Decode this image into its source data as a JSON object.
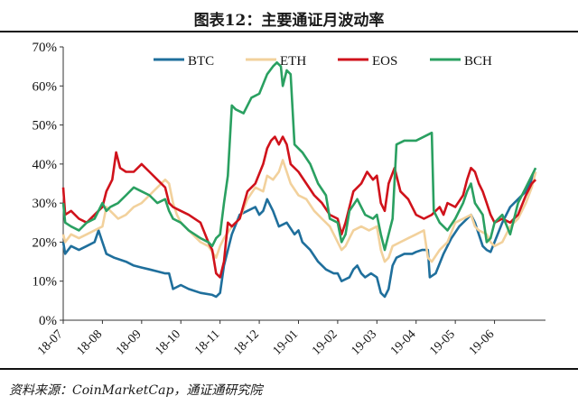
{
  "title": "图表12：主要通证月波动率",
  "source": "资料来源：CoinMarketCap，通证通研究院",
  "chart_data": {
    "type": "line",
    "x_ticks": [
      "18-07",
      "18-08",
      "18-09",
      "18-10",
      "18-11",
      "18-12",
      "19-01",
      "19-02",
      "19-03",
      "19-04",
      "19-05",
      "19-06"
    ],
    "y_ticks": [
      "0%",
      "10%",
      "20%",
      "30%",
      "40%",
      "50%",
      "60%",
      "70%"
    ],
    "ylim": [
      0,
      70
    ],
    "xlim": [
      0,
      12.3
    ],
    "legend_position": "top",
    "series": [
      {
        "name": "BTC",
        "color": "#1f6f9c",
        "points": [
          [
            0.0,
            20
          ],
          [
            0.05,
            17
          ],
          [
            0.2,
            19
          ],
          [
            0.4,
            18
          ],
          [
            0.6,
            19
          ],
          [
            0.8,
            20
          ],
          [
            0.9,
            23
          ],
          [
            1.0,
            20
          ],
          [
            1.1,
            17
          ],
          [
            1.3,
            16
          ],
          [
            1.6,
            15
          ],
          [
            1.8,
            14
          ],
          [
            2.0,
            13.5
          ],
          [
            2.2,
            13
          ],
          [
            2.4,
            12.5
          ],
          [
            2.6,
            12
          ],
          [
            2.7,
            12
          ],
          [
            2.8,
            8
          ],
          [
            3.0,
            9
          ],
          [
            3.2,
            8
          ],
          [
            3.5,
            7
          ],
          [
            3.8,
            6.5
          ],
          [
            3.9,
            6
          ],
          [
            4.0,
            7
          ],
          [
            4.1,
            14
          ],
          [
            4.3,
            22
          ],
          [
            4.5,
            27
          ],
          [
            4.7,
            28
          ],
          [
            4.9,
            29
          ],
          [
            5.0,
            27
          ],
          [
            5.1,
            28
          ],
          [
            5.2,
            31
          ],
          [
            5.35,
            28
          ],
          [
            5.5,
            24
          ],
          [
            5.7,
            25
          ],
          [
            5.9,
            22
          ],
          [
            6.0,
            23
          ],
          [
            6.1,
            20
          ],
          [
            6.3,
            18
          ],
          [
            6.5,
            15
          ],
          [
            6.7,
            13
          ],
          [
            6.9,
            12
          ],
          [
            7.0,
            12
          ],
          [
            7.1,
            10
          ],
          [
            7.3,
            11
          ],
          [
            7.4,
            13
          ],
          [
            7.5,
            14
          ],
          [
            7.6,
            12
          ],
          [
            7.7,
            11
          ],
          [
            7.85,
            12
          ],
          [
            8.0,
            11
          ],
          [
            8.1,
            7
          ],
          [
            8.2,
            6
          ],
          [
            8.3,
            8
          ],
          [
            8.4,
            14
          ],
          [
            8.5,
            16
          ],
          [
            8.7,
            17
          ],
          [
            8.9,
            17
          ],
          [
            9.0,
            17.5
          ],
          [
            9.15,
            18
          ],
          [
            9.3,
            18
          ],
          [
            9.35,
            11
          ],
          [
            9.5,
            12
          ],
          [
            9.7,
            17
          ],
          [
            9.9,
            21
          ],
          [
            10.1,
            24
          ],
          [
            10.3,
            26
          ],
          [
            10.4,
            27
          ],
          [
            10.5,
            25
          ],
          [
            10.6,
            22
          ],
          [
            10.7,
            19
          ],
          [
            10.8,
            18
          ],
          [
            10.9,
            17.5
          ],
          [
            11.0,
            20
          ],
          [
            11.2,
            25
          ],
          [
            11.4,
            29
          ],
          [
            11.6,
            31
          ],
          [
            11.8,
            33
          ],
          [
            11.95,
            36
          ],
          [
            12.05,
            38
          ]
        ]
      },
      {
        "name": "ETH",
        "color": "#f2d19c",
        "points": [
          [
            0.0,
            22
          ],
          [
            0.05,
            20
          ],
          [
            0.2,
            22
          ],
          [
            0.4,
            21
          ],
          [
            0.6,
            22
          ],
          [
            0.8,
            23
          ],
          [
            1.0,
            24
          ],
          [
            1.1,
            29
          ],
          [
            1.2,
            28
          ],
          [
            1.3,
            27
          ],
          [
            1.4,
            26
          ],
          [
            1.6,
            27
          ],
          [
            1.8,
            29
          ],
          [
            2.0,
            30
          ],
          [
            2.2,
            32
          ],
          [
            2.4,
            34
          ],
          [
            2.6,
            36
          ],
          [
            2.7,
            35
          ],
          [
            2.8,
            30
          ],
          [
            2.9,
            27
          ],
          [
            3.0,
            25
          ],
          [
            3.2,
            23
          ],
          [
            3.5,
            20
          ],
          [
            3.7,
            19
          ],
          [
            3.8,
            17.5
          ],
          [
            3.9,
            16
          ],
          [
            4.0,
            19
          ],
          [
            4.1,
            21
          ],
          [
            4.3,
            24
          ],
          [
            4.5,
            26
          ],
          [
            4.7,
            31
          ],
          [
            4.9,
            34
          ],
          [
            5.1,
            33
          ],
          [
            5.2,
            37
          ],
          [
            5.35,
            36
          ],
          [
            5.5,
            38
          ],
          [
            5.6,
            41
          ],
          [
            5.7,
            38
          ],
          [
            5.8,
            35
          ],
          [
            6.0,
            32
          ],
          [
            6.2,
            31
          ],
          [
            6.4,
            28
          ],
          [
            6.6,
            26
          ],
          [
            6.8,
            24
          ],
          [
            6.9,
            22
          ],
          [
            7.0,
            20
          ],
          [
            7.1,
            18
          ],
          [
            7.2,
            19
          ],
          [
            7.3,
            21
          ],
          [
            7.4,
            23
          ],
          [
            7.6,
            24
          ],
          [
            7.8,
            23
          ],
          [
            8.0,
            24
          ],
          [
            8.1,
            18
          ],
          [
            8.2,
            15
          ],
          [
            8.3,
            16
          ],
          [
            8.4,
            19
          ],
          [
            8.6,
            20
          ],
          [
            8.8,
            21
          ],
          [
            9.0,
            22
          ],
          [
            9.2,
            23
          ],
          [
            9.3,
            16
          ],
          [
            9.4,
            15
          ],
          [
            9.6,
            18
          ],
          [
            9.8,
            20
          ],
          [
            10.0,
            25
          ],
          [
            10.2,
            26
          ],
          [
            10.4,
            27
          ],
          [
            10.5,
            24
          ],
          [
            10.6,
            23
          ],
          [
            10.8,
            22
          ],
          [
            10.9,
            20
          ],
          [
            11.0,
            19
          ],
          [
            11.2,
            20
          ],
          [
            11.4,
            24
          ],
          [
            11.6,
            26
          ],
          [
            11.8,
            30
          ],
          [
            11.95,
            34
          ],
          [
            12.05,
            38
          ]
        ]
      },
      {
        "name": "EOS",
        "color": "#d0121b",
        "points": [
          [
            0.0,
            34
          ],
          [
            0.05,
            27
          ],
          [
            0.2,
            28
          ],
          [
            0.4,
            26
          ],
          [
            0.6,
            25
          ],
          [
            0.8,
            27
          ],
          [
            1.0,
            29
          ],
          [
            1.1,
            33
          ],
          [
            1.25,
            36
          ],
          [
            1.35,
            43
          ],
          [
            1.45,
            39
          ],
          [
            1.6,
            38
          ],
          [
            1.8,
            38
          ],
          [
            2.0,
            40
          ],
          [
            2.2,
            38
          ],
          [
            2.4,
            36
          ],
          [
            2.6,
            34
          ],
          [
            2.7,
            30
          ],
          [
            2.8,
            29
          ],
          [
            3.0,
            28
          ],
          [
            3.2,
            27
          ],
          [
            3.5,
            25
          ],
          [
            3.7,
            20
          ],
          [
            3.8,
            18
          ],
          [
            3.9,
            12
          ],
          [
            4.0,
            11
          ],
          [
            4.1,
            15
          ],
          [
            4.2,
            25
          ],
          [
            4.3,
            24
          ],
          [
            4.5,
            26
          ],
          [
            4.7,
            33
          ],
          [
            4.9,
            35
          ],
          [
            5.1,
            40
          ],
          [
            5.2,
            44
          ],
          [
            5.3,
            46
          ],
          [
            5.4,
            47
          ],
          [
            5.5,
            45
          ],
          [
            5.6,
            47
          ],
          [
            5.7,
            45
          ],
          [
            5.8,
            40
          ],
          [
            6.0,
            38
          ],
          [
            6.2,
            35
          ],
          [
            6.4,
            32
          ],
          [
            6.6,
            30
          ],
          [
            6.8,
            27
          ],
          [
            7.0,
            26
          ],
          [
            7.1,
            22
          ],
          [
            7.2,
            25
          ],
          [
            7.4,
            33
          ],
          [
            7.6,
            35
          ],
          [
            7.75,
            38
          ],
          [
            7.9,
            36
          ],
          [
            8.0,
            37
          ],
          [
            8.1,
            30
          ],
          [
            8.2,
            28
          ],
          [
            8.3,
            35
          ],
          [
            8.45,
            39
          ],
          [
            8.6,
            33
          ],
          [
            8.8,
            31
          ],
          [
            9.0,
            27
          ],
          [
            9.2,
            26
          ],
          [
            9.4,
            27
          ],
          [
            9.5,
            28
          ],
          [
            9.6,
            29
          ],
          [
            9.7,
            27
          ],
          [
            9.8,
            30
          ],
          [
            10.0,
            29
          ],
          [
            10.2,
            32
          ],
          [
            10.3,
            36
          ],
          [
            10.4,
            39
          ],
          [
            10.5,
            38
          ],
          [
            10.6,
            35
          ],
          [
            10.7,
            33
          ],
          [
            10.8,
            30
          ],
          [
            10.9,
            27
          ],
          [
            11.0,
            25
          ],
          [
            11.2,
            26
          ],
          [
            11.4,
            25
          ],
          [
            11.6,
            27
          ],
          [
            11.8,
            32
          ],
          [
            11.95,
            35
          ],
          [
            12.05,
            36
          ]
        ]
      },
      {
        "name": "BCH",
        "color": "#2aa061",
        "points": [
          [
            0.0,
            30
          ],
          [
            0.05,
            25
          ],
          [
            0.2,
            24
          ],
          [
            0.4,
            23
          ],
          [
            0.6,
            25
          ],
          [
            0.8,
            26
          ],
          [
            1.0,
            30
          ],
          [
            1.1,
            28
          ],
          [
            1.2,
            29
          ],
          [
            1.4,
            30
          ],
          [
            1.6,
            32
          ],
          [
            1.8,
            34
          ],
          [
            2.0,
            33
          ],
          [
            2.2,
            32
          ],
          [
            2.4,
            30
          ],
          [
            2.6,
            31
          ],
          [
            2.7,
            28
          ],
          [
            2.8,
            26
          ],
          [
            3.0,
            25
          ],
          [
            3.2,
            23
          ],
          [
            3.5,
            21
          ],
          [
            3.7,
            20
          ],
          [
            3.8,
            19
          ],
          [
            3.9,
            21
          ],
          [
            4.0,
            22
          ],
          [
            4.1,
            30
          ],
          [
            4.2,
            37
          ],
          [
            4.3,
            55
          ],
          [
            4.4,
            54
          ],
          [
            4.6,
            53
          ],
          [
            4.8,
            57
          ],
          [
            5.0,
            58
          ],
          [
            5.2,
            63
          ],
          [
            5.35,
            65
          ],
          [
            5.45,
            66
          ],
          [
            5.55,
            65
          ],
          [
            5.6,
            60
          ],
          [
            5.7,
            64
          ],
          [
            5.8,
            63
          ],
          [
            5.9,
            45
          ],
          [
            6.1,
            43
          ],
          [
            6.3,
            40
          ],
          [
            6.5,
            35
          ],
          [
            6.7,
            32
          ],
          [
            6.8,
            26
          ],
          [
            7.0,
            25
          ],
          [
            7.1,
            20
          ],
          [
            7.2,
            22
          ],
          [
            7.3,
            28
          ],
          [
            7.5,
            31
          ],
          [
            7.7,
            27
          ],
          [
            7.9,
            26
          ],
          [
            8.0,
            27
          ],
          [
            8.1,
            22
          ],
          [
            8.2,
            18
          ],
          [
            8.3,
            22
          ],
          [
            8.4,
            26
          ],
          [
            8.5,
            45
          ],
          [
            8.7,
            46
          ],
          [
            9.0,
            46
          ],
          [
            9.2,
            47
          ],
          [
            9.4,
            48
          ],
          [
            9.45,
            28
          ],
          [
            9.6,
            25
          ],
          [
            9.8,
            23
          ],
          [
            10.0,
            26
          ],
          [
            10.2,
            30
          ],
          [
            10.3,
            33
          ],
          [
            10.4,
            35
          ],
          [
            10.5,
            30
          ],
          [
            10.7,
            27
          ],
          [
            10.8,
            20
          ],
          [
            10.9,
            21
          ],
          [
            11.0,
            25
          ],
          [
            11.2,
            27
          ],
          [
            11.4,
            22
          ],
          [
            11.6,
            30
          ],
          [
            11.8,
            34
          ],
          [
            11.95,
            37
          ],
          [
            12.05,
            39
          ]
        ]
      }
    ]
  }
}
